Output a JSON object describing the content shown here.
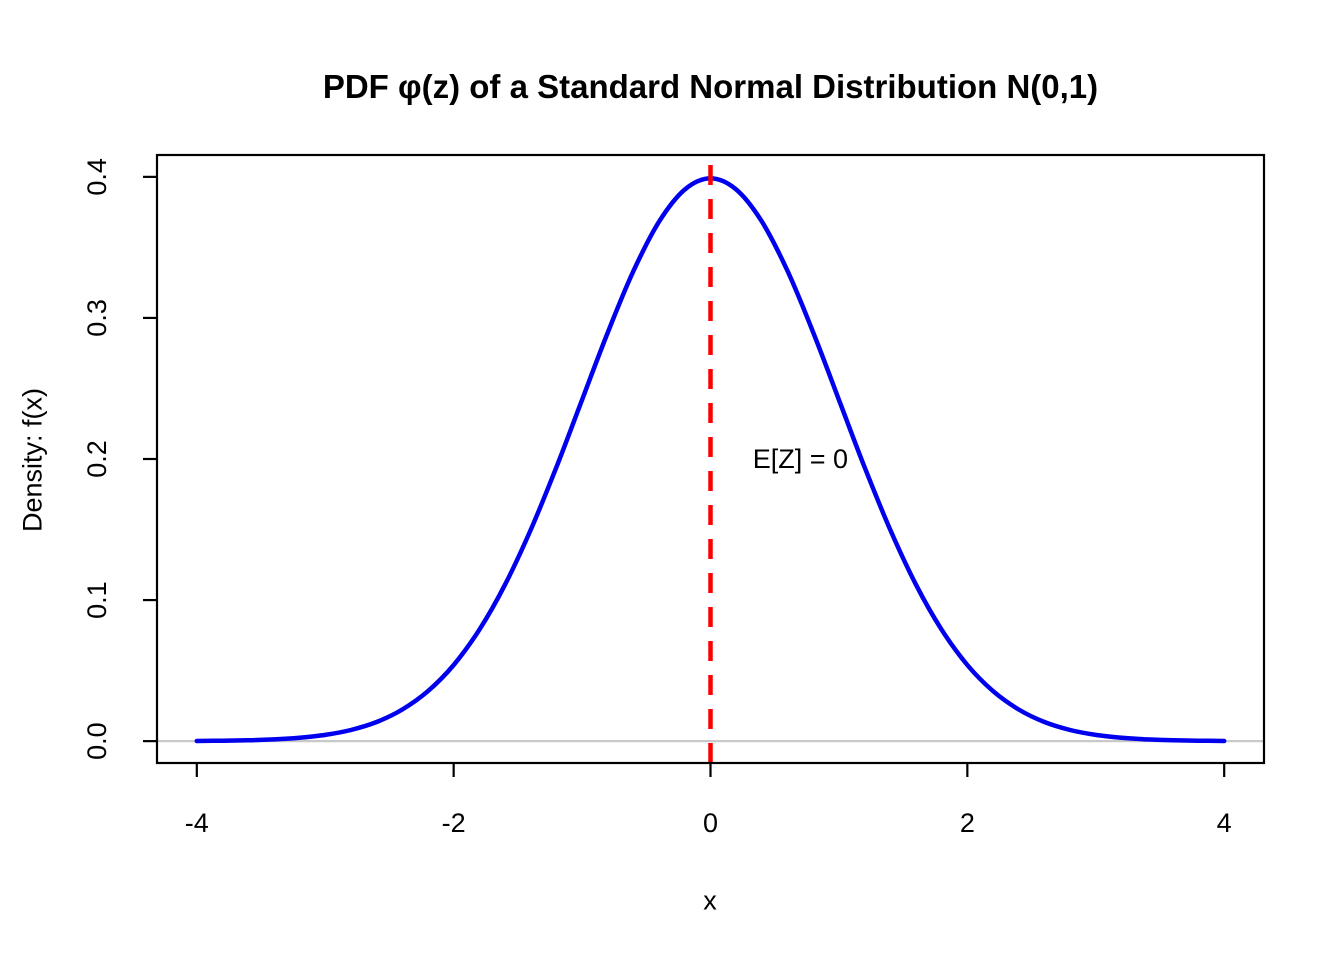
{
  "chart_data": {
    "type": "line",
    "title": "PDF φ(z) of a Standard Normal Distribution N(0,1)",
    "xlabel": "x",
    "ylabel": "Density: f(x)",
    "xlim": [
      -4.31,
      4.31
    ],
    "ylim": [
      -0.0155,
      0.4155
    ],
    "grid": false,
    "legend": "none",
    "x_ticks": [
      -4,
      -2,
      0,
      2,
      4
    ],
    "x_tick_labels": [
      "-4",
      "-2",
      "0",
      "2",
      "4"
    ],
    "y_ticks": [
      0.0,
      0.1,
      0.2,
      0.3,
      0.4
    ],
    "y_tick_labels": [
      "0.0",
      "0.1",
      "0.2",
      "0.3",
      "0.4"
    ],
    "series": [
      {
        "name": "standard-normal-pdf",
        "color": "#0000ee",
        "x": [
          -4,
          -3.8,
          -3.6,
          -3.4,
          -3.2,
          -3,
          -2.8,
          -2.6,
          -2.4,
          -2.2,
          -2,
          -1.8,
          -1.6,
          -1.4,
          -1.2,
          -1,
          -0.8,
          -0.6,
          -0.4,
          -0.2,
          0,
          0.2,
          0.4,
          0.6,
          0.8,
          1,
          1.2,
          1.4,
          1.6,
          1.8,
          2,
          2.2,
          2.4,
          2.6,
          2.8,
          3,
          3.2,
          3.4,
          3.6,
          3.8,
          4
        ],
        "y": [
          0.00013,
          0.00029,
          0.00061,
          0.00123,
          0.00238,
          0.00443,
          0.00792,
          0.01358,
          0.02239,
          0.03547,
          0.05399,
          0.07895,
          0.11092,
          0.14973,
          0.19419,
          0.24197,
          0.28969,
          0.33322,
          0.36827,
          0.39104,
          0.39894,
          0.39104,
          0.36827,
          0.33322,
          0.28969,
          0.24197,
          0.19419,
          0.14973,
          0.11092,
          0.07895,
          0.05399,
          0.03547,
          0.02239,
          0.01358,
          0.00792,
          0.00443,
          0.00238,
          0.00123,
          0.00061,
          0.00029,
          0.00013
        ]
      }
    ],
    "mean_line": {
      "x": 0,
      "color": "#ff0000",
      "style": "dashed"
    },
    "zero_line": {
      "y": 0,
      "color": "#c9c9c9"
    },
    "annotation": {
      "text": "E[Z] = 0",
      "x": 0.7,
      "y": 0.2,
      "color": "#ff0000"
    },
    "box_color": "#000000"
  }
}
